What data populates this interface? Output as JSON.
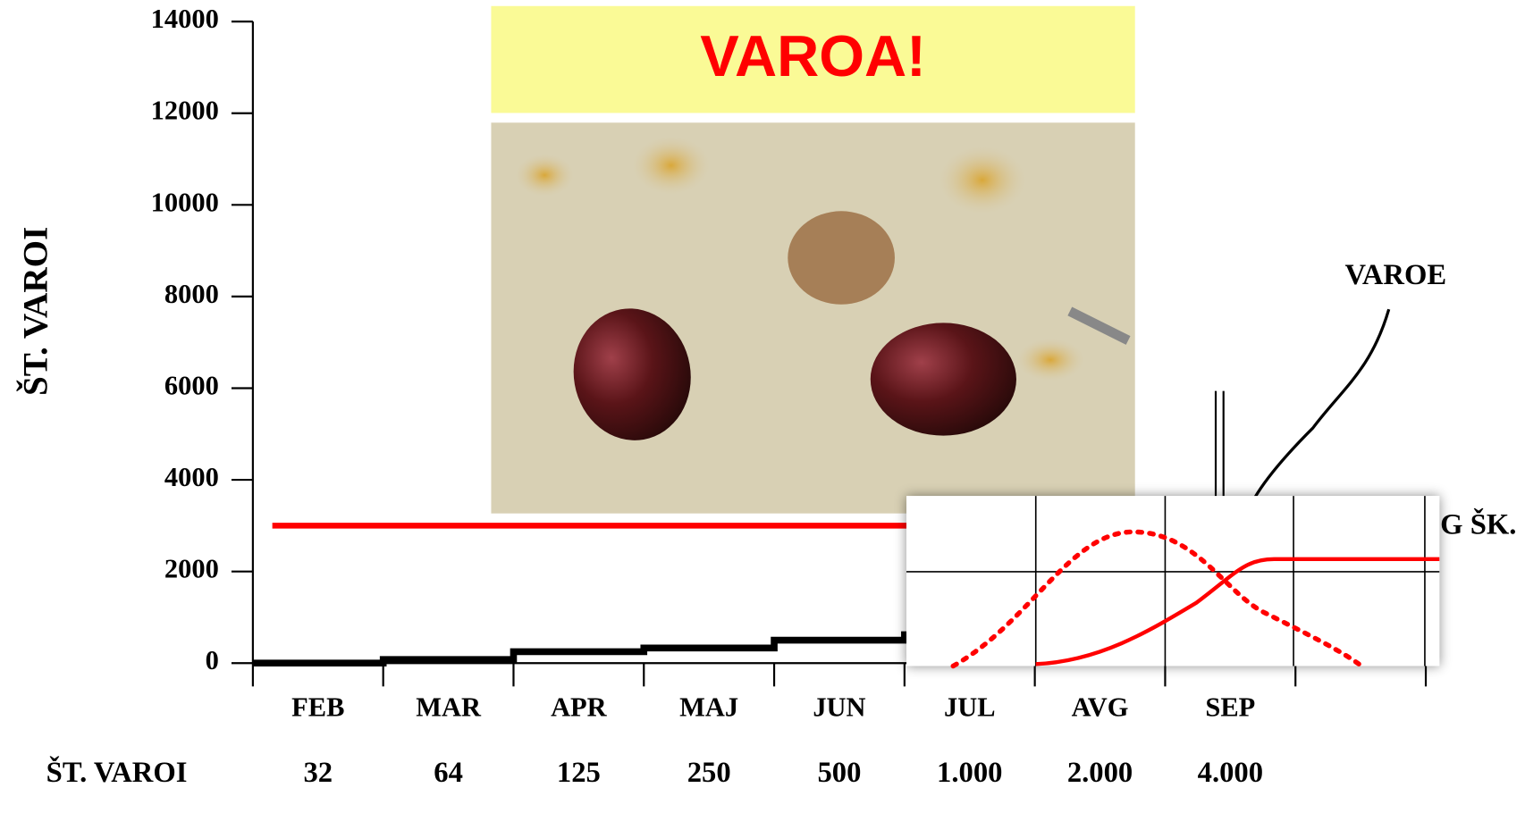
{
  "chart_data": {
    "type": "line",
    "title": "VAROA!",
    "y_label": "ŠT. VAROI",
    "ylim": [
      0,
      14000
    ],
    "yticks": [
      0,
      2000,
      4000,
      6000,
      8000,
      10000,
      12000,
      14000
    ],
    "categories": [
      "FEB",
      "MAR",
      "APR",
      "MAJ",
      "JUN",
      "JUL",
      "AVG",
      "SEP",
      null
    ],
    "series": [
      {
        "color": "#000000",
        "values": [
          0,
          80,
          250,
          330,
          500,
          620,
          null,
          null,
          null
        ]
      },
      {
        "color": "#ff0000",
        "values": [
          3000,
          3000,
          3000,
          3000,
          3000,
          3000,
          null,
          null,
          null
        ]
      }
    ],
    "count_row": {
      "label": "ŠT. VAROI",
      "values": [
        32,
        64,
        125,
        250,
        500,
        1000,
        2000,
        4000
      ],
      "value_labels": [
        "32",
        "64",
        "125",
        "250",
        "500",
        "1.000",
        "2.000",
        "4.000"
      ]
    },
    "annotations": [
      "VAROE",
      "G ŠK."
    ]
  }
}
